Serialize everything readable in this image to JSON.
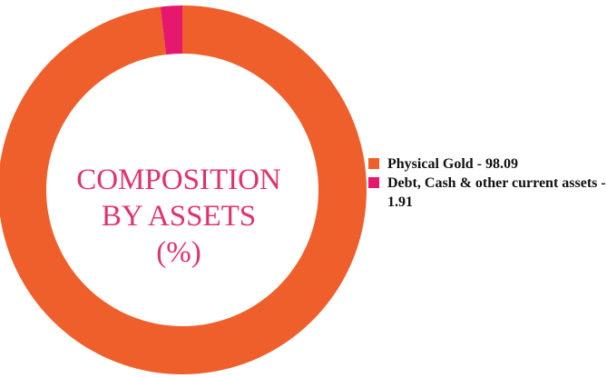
{
  "chart_data": {
    "type": "donut",
    "title_lines": [
      "COMPOSITION",
      "BY ASSETS",
      "(%)"
    ],
    "categories": [
      "Physical Gold - 98.09",
      "Debt, Cash & other current assets - 1.91"
    ],
    "values": [
      98.09,
      1.91
    ],
    "colors": [
      "#ef5f2b",
      "#e6186d"
    ],
    "title_color": "#e2326c"
  }
}
